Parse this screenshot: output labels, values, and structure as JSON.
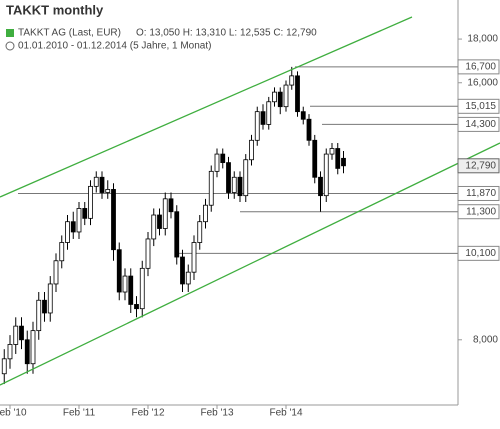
{
  "chart_data": {
    "type": "candlestick",
    "title": "TAKKT monthly",
    "subtitle": "TAKKT AG (Last, EUR)",
    "info": "O: 13,050  H: 13,310  L: 12,535  C: 12,790",
    "period": "01.01.2010 - 01.12.2014 (5 Jahre, 1 Monat)",
    "categories": [
      null,
      "Feb '10",
      null,
      null,
      null,
      null,
      null,
      null,
      null,
      null,
      null,
      null,
      null,
      "Feb '11",
      null,
      null,
      null,
      null,
      null,
      null,
      null,
      null,
      null,
      null,
      null,
      "Feb '12",
      null,
      null,
      null,
      null,
      null,
      null,
      null,
      null,
      null,
      null,
      null,
      "Feb '13",
      null,
      null,
      null,
      null,
      null,
      null,
      null,
      null,
      null,
      null,
      null,
      "Feb '14",
      null,
      null,
      null,
      null,
      null,
      null,
      null,
      null,
      null,
      null
    ],
    "open": [
      7300,
      7600,
      7900,
      8300,
      8000,
      7500,
      8200,
      8900,
      8600,
      9300,
      9900,
      10400,
      11000,
      10700,
      11400,
      11100,
      12100,
      12400,
      11900,
      12000,
      10200,
      9100,
      9500,
      8800,
      8700,
      9700,
      10500,
      11200,
      10800,
      11700,
      11300,
      10000,
      9300,
      9600,
      10400,
      11000,
      11500,
      12600,
      13200,
      12900,
      11900,
      12400,
      11800,
      13000,
      13700,
      14800,
      14300,
      15200,
      15600,
      15000,
      15900,
      16300,
      14800,
      14500,
      13700,
      12400,
      11800,
      13200,
      13400,
      13050
    ],
    "high": [
      7800,
      8100,
      8500,
      8500,
      8200,
      8400,
      9100,
      9100,
      9500,
      10100,
      10600,
      11200,
      11300,
      11600,
      11600,
      12300,
      12600,
      12600,
      12300,
      12200,
      10400,
      9700,
      9700,
      9000,
      9900,
      10700,
      11400,
      11400,
      11900,
      11900,
      11500,
      10200,
      9800,
      10600,
      11200,
      11700,
      12800,
      13400,
      13400,
      13100,
      12600,
      12600,
      13200,
      13900,
      15000,
      15100,
      15400,
      15800,
      15800,
      16100,
      16700,
      16500,
      15000,
      14700,
      13900,
      12600,
      13400,
      13600,
      13600,
      13310
    ],
    "low": [
      7100,
      7400,
      7700,
      7800,
      7300,
      7300,
      8000,
      8400,
      8400,
      9100,
      9700,
      10200,
      10500,
      10500,
      10900,
      10900,
      11900,
      11700,
      11700,
      9900,
      8900,
      8900,
      8600,
      8500,
      8500,
      9500,
      10300,
      10600,
      10600,
      11100,
      9800,
      9100,
      9100,
      9400,
      10200,
      10800,
      11300,
      12400,
      12700,
      11700,
      11700,
      11600,
      11600,
      12800,
      13500,
      14100,
      14100,
      15000,
      14700,
      14800,
      15700,
      14600,
      14300,
      13500,
      12200,
      11300,
      11600,
      13000,
      12500,
      12535
    ],
    "close": [
      7600,
      7900,
      8300,
      8000,
      7500,
      8200,
      8900,
      8600,
      9300,
      9900,
      10400,
      11000,
      10700,
      11400,
      11100,
      12100,
      12400,
      11900,
      12000,
      10200,
      9100,
      9500,
      8800,
      8700,
      9700,
      10500,
      11200,
      10800,
      11700,
      11300,
      10000,
      9300,
      9600,
      10400,
      11000,
      11500,
      12600,
      13200,
      12900,
      11900,
      12400,
      11800,
      13000,
      13700,
      14800,
      14300,
      15200,
      15600,
      15000,
      15900,
      16300,
      14800,
      14500,
      13700,
      12400,
      11800,
      13200,
      13400,
      12700,
      12790
    ],
    "log_scale": true,
    "ylim": [
      6710,
      20000
    ],
    "yticks": [
      {
        "value": 18000,
        "label": "18,000"
      },
      {
        "value": 16000,
        "label": "16,000"
      },
      {
        "value": 8000,
        "label": "8,000"
      }
    ],
    "levels": [
      {
        "value": 16700,
        "label": "16,700"
      },
      {
        "value": 15015,
        "label": "15,015"
      },
      {
        "value": 14300,
        "label": "14,300"
      },
      {
        "value": 11870,
        "label": "11,870"
      },
      {
        "value": 11300,
        "label": "11,300"
      },
      {
        "value": 10100,
        "label": "10,100"
      }
    ],
    "last": {
      "value": 12790,
      "label": "12,790"
    }
  }
}
